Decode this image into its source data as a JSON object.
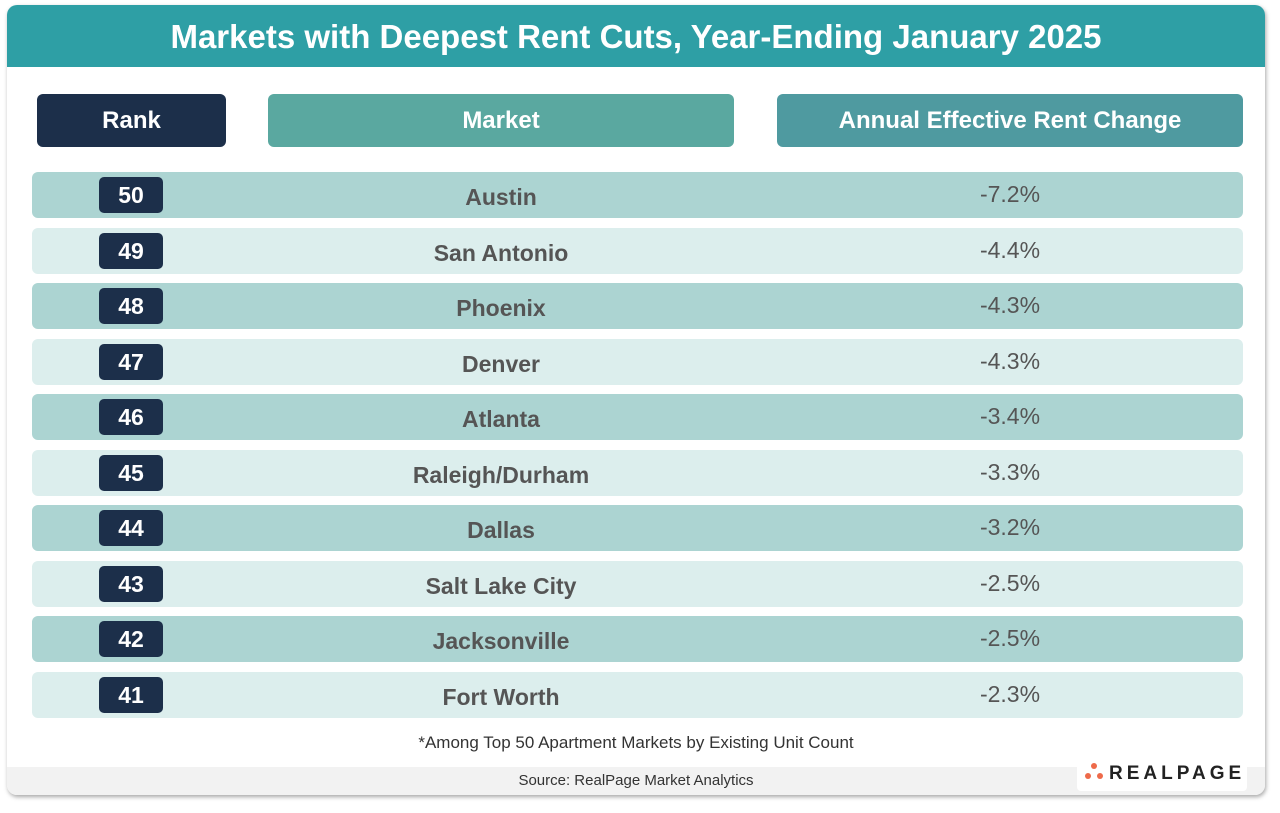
{
  "title": "Markets with Deepest Rent Cuts, Year-Ending January 2025",
  "headers": {
    "rank": "Rank",
    "market": "Market",
    "change": "Annual Effective Rent Change"
  },
  "colors": {
    "title_bg": "#2e9fa5",
    "rank_bg": "#1c2f4a",
    "market_hdr": "#5aa8a0",
    "change_hdr": "#4f9aa0",
    "row_dark": "#acd4d2",
    "row_light": "#dceeed",
    "logo_dots": "#ee6a4a"
  },
  "chart_data": {
    "type": "table",
    "columns": [
      "Rank",
      "Market",
      "Annual Effective Rent Change"
    ],
    "rows": [
      {
        "rank": "50",
        "market": "Austin",
        "change": "-7.2%"
      },
      {
        "rank": "49",
        "market": "San Antonio",
        "change": "-4.4%"
      },
      {
        "rank": "48",
        "market": "Phoenix",
        "change": "-4.3%"
      },
      {
        "rank": "47",
        "market": "Denver",
        "change": "-4.3%"
      },
      {
        "rank": "46",
        "market": "Atlanta",
        "change": "-3.4%"
      },
      {
        "rank": "45",
        "market": "Raleigh/Durham",
        "change": "-3.3%"
      },
      {
        "rank": "44",
        "market": "Dallas",
        "change": "-3.2%"
      },
      {
        "rank": "43",
        "market": "Salt Lake City",
        "change": "-2.5%"
      },
      {
        "rank": "42",
        "market": "Jacksonville",
        "change": "-2.5%"
      },
      {
        "rank": "41",
        "market": "Fort Worth",
        "change": "-2.3%"
      }
    ]
  },
  "footnote": "*Among Top 50 Apartment Markets by Existing Unit Count",
  "source": "Source: RealPage Market Analytics",
  "logo": "REALPAGE"
}
